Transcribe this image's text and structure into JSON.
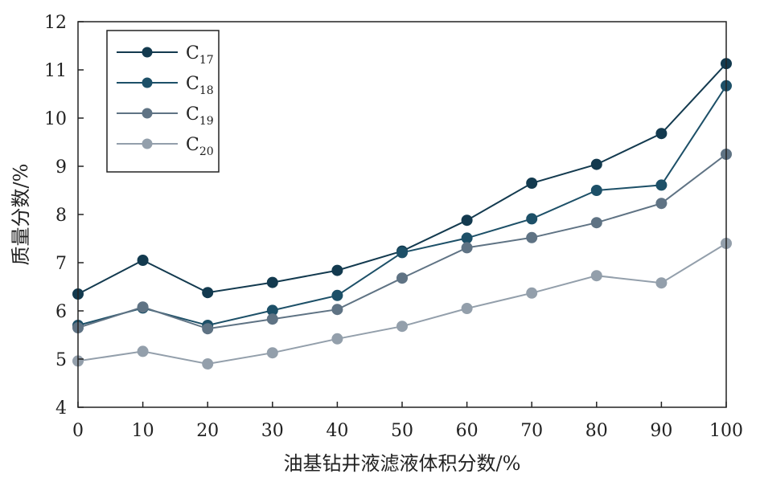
{
  "chart_data": {
    "type": "line",
    "title": "",
    "xlabel": "油基钻井液滤液体积分数/%",
    "ylabel": "质量分数/%",
    "xlim": [
      0,
      100
    ],
    "ylim": [
      4,
      12
    ],
    "x": [
      0,
      10,
      20,
      30,
      40,
      50,
      60,
      70,
      80,
      90,
      100
    ],
    "x_ticks": [
      "0",
      "10",
      "20",
      "30",
      "40",
      "50",
      "60",
      "70",
      "80",
      "90",
      "100"
    ],
    "y_ticks": [
      "4",
      "5",
      "6",
      "7",
      "8",
      "9",
      "10",
      "11",
      "12"
    ],
    "grid": false,
    "legend_position": "top-left",
    "series": [
      {
        "name": "C17",
        "name_base": "C",
        "name_sub": "17",
        "color": "#133a4f",
        "values": [
          6.35,
          7.05,
          6.38,
          6.59,
          6.84,
          7.24,
          7.88,
          8.65,
          9.04,
          9.68,
          11.13
        ]
      },
      {
        "name": "C18",
        "name_base": "C",
        "name_sub": "18",
        "color": "#1d5068",
        "values": [
          5.7,
          6.06,
          5.7,
          6.01,
          6.32,
          7.21,
          7.51,
          7.91,
          8.5,
          8.61,
          10.67
        ]
      },
      {
        "name": "C19",
        "name_base": "C",
        "name_sub": "19",
        "color": "#5f7384",
        "values": [
          5.65,
          6.08,
          5.63,
          5.83,
          6.03,
          6.68,
          7.31,
          7.52,
          7.83,
          8.23,
          9.25
        ]
      },
      {
        "name": "C20",
        "name_base": "C",
        "name_sub": "20",
        "color": "#939fab",
        "values": [
          4.96,
          5.16,
          4.9,
          5.13,
          5.42,
          5.68,
          6.05,
          6.37,
          6.73,
          6.58,
          7.4
        ]
      }
    ]
  }
}
